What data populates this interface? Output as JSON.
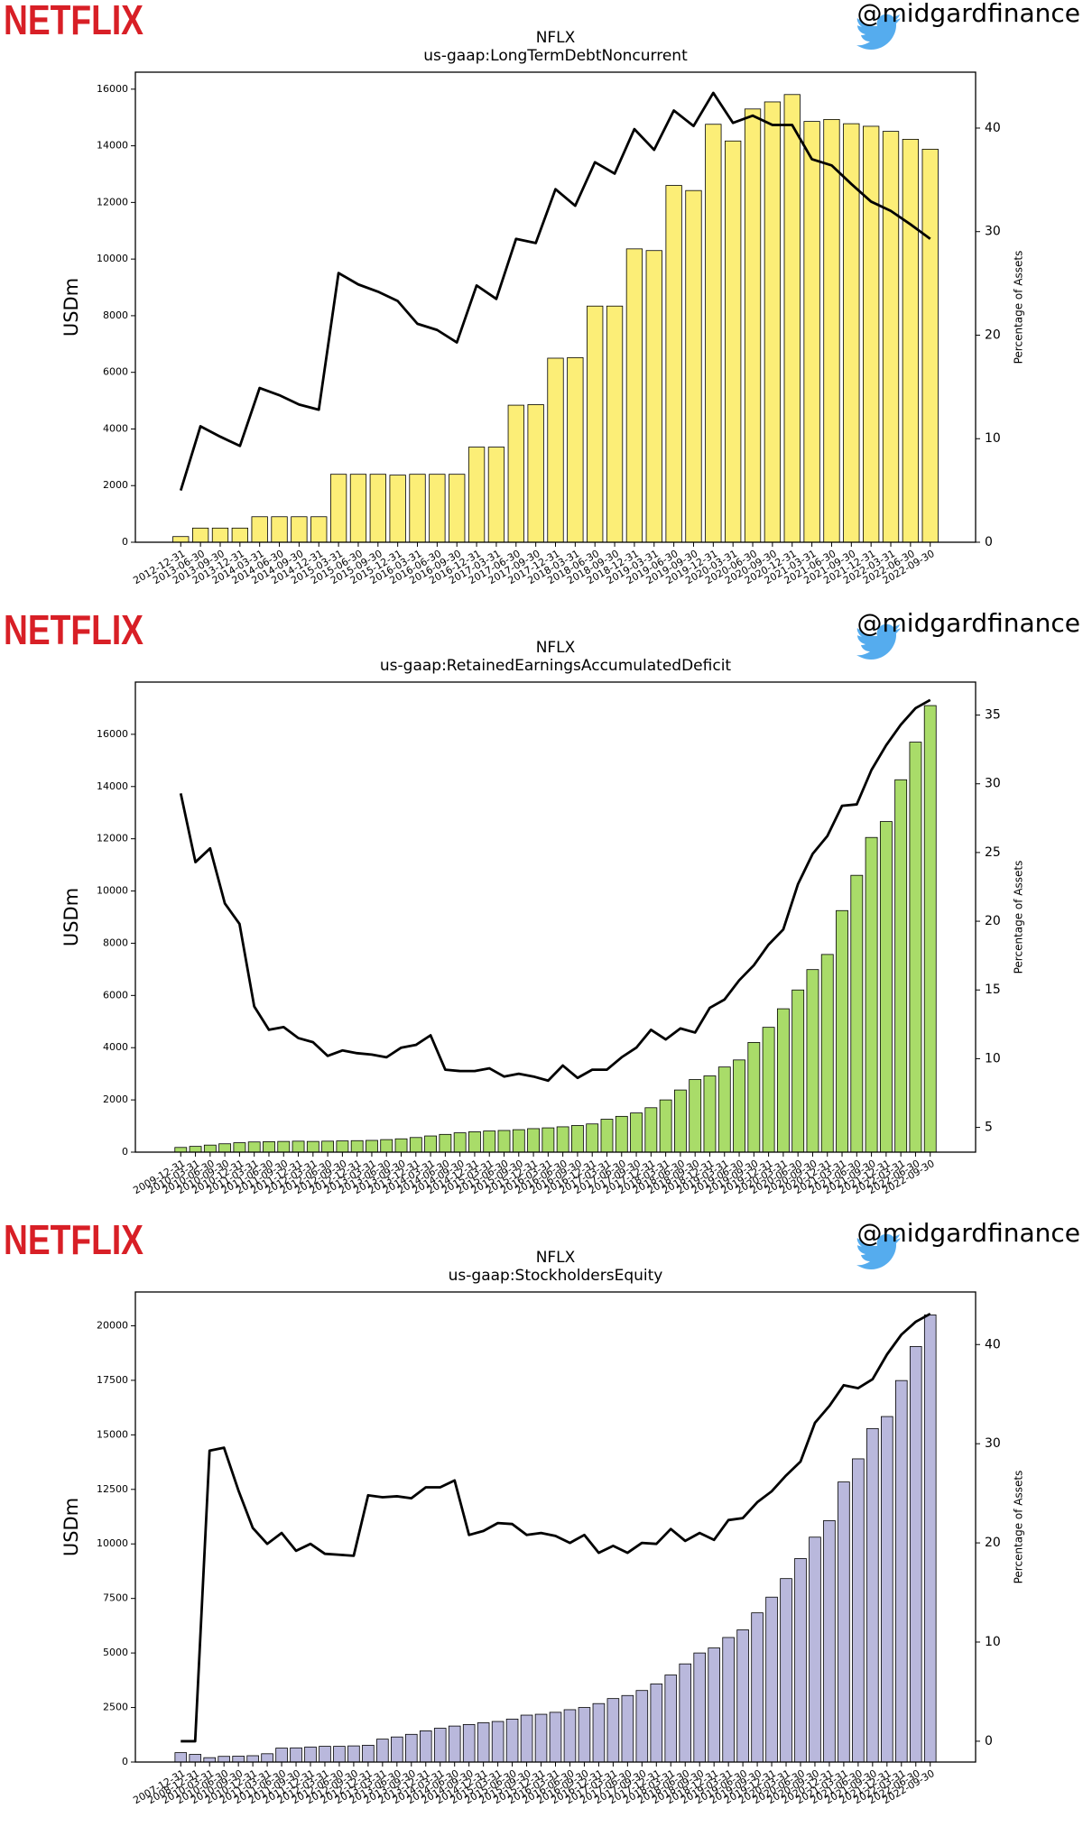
{
  "chart_data": [
    {
      "type": "bar",
      "logo": "NETFLIX",
      "handle": "@midgardfinance",
      "title": "NFLX",
      "subtitle": "us-gaap:LongTermDebtNoncurrent",
      "ylabel": "USDm",
      "y2label": "Percentage of Assets",
      "categories": [
        "2012-12-31",
        "2013-06-30",
        "2013-09-30",
        "2013-12-31",
        "2014-03-31",
        "2014-06-30",
        "2014-09-30",
        "2014-12-31",
        "2015-03-31",
        "2015-06-30",
        "2015-09-30",
        "2015-12-31",
        "2016-03-31",
        "2016-06-30",
        "2016-09-30",
        "2016-12-31",
        "2017-03-31",
        "2017-06-30",
        "2017-09-30",
        "2017-12-31",
        "2018-03-31",
        "2018-06-30",
        "2018-09-30",
        "2018-12-31",
        "2019-03-31",
        "2019-06-30",
        "2019-09-30",
        "2019-12-31",
        "2020-03-31",
        "2020-06-30",
        "2020-09-30",
        "2020-12-31",
        "2021-03-31",
        "2021-06-30",
        "2021-09-30",
        "2021-12-31",
        "2022-03-31",
        "2022-06-30",
        "2022-09-30"
      ],
      "series": [
        {
          "type": "bar",
          "color": "#fcee77",
          "values": [
            200,
            500,
            500,
            500,
            900,
            900,
            900,
            900,
            2400,
            2400,
            2400,
            2370,
            2400,
            2400,
            2400,
            3360,
            3360,
            4840,
            4860,
            6500,
            6520,
            8340,
            8340,
            10360,
            10300,
            12600,
            12420,
            14760,
            14170,
            15300,
            15550,
            15810,
            14860,
            14930,
            14780,
            14690,
            14510,
            14230,
            13880
          ]
        },
        {
          "type": "line",
          "axis": "y2",
          "color": "#000000",
          "values": [
            5.0,
            11.2,
            10.2,
            9.3,
            14.9,
            14.2,
            13.3,
            12.8,
            26.0,
            24.9,
            24.2,
            23.3,
            21.1,
            20.5,
            19.3,
            24.8,
            23.5,
            29.3,
            28.9,
            34.1,
            32.5,
            36.7,
            35.6,
            39.9,
            37.9,
            41.7,
            40.2,
            43.4,
            40.5,
            41.2,
            40.3,
            40.3,
            37.0,
            36.4,
            34.6,
            32.9,
            32.0,
            30.7,
            29.3
          ]
        }
      ],
      "ylim": [
        0,
        16600
      ],
      "yticks": [
        0,
        2000,
        4000,
        6000,
        8000,
        10000,
        12000,
        14000,
        16000
      ],
      "y2lim": [
        0,
        45.4
      ],
      "y2ticks": [
        0,
        10,
        20,
        30,
        40
      ]
    },
    {
      "type": "bar",
      "logo": "NETFLIX",
      "handle": "@midgardfinance",
      "title": "NFLX",
      "subtitle": "us-gaap:RetainedEarningsAccumulatedDeficit",
      "ylabel": "USDm",
      "y2label": "Percentage of Assets",
      "categories": [
        "2009-12-31",
        "2010-03-31",
        "2010-06-30",
        "2010-09-30",
        "2010-12-31",
        "2011-03-31",
        "2011-06-30",
        "2011-09-30",
        "2011-12-31",
        "2012-03-31",
        "2012-06-30",
        "2012-09-30",
        "2012-12-31",
        "2013-03-31",
        "2013-06-30",
        "2013-09-30",
        "2013-12-31",
        "2014-03-31",
        "2014-06-30",
        "2014-09-30",
        "2014-12-31",
        "2015-03-31",
        "2015-06-30",
        "2015-09-30",
        "2015-12-31",
        "2016-03-31",
        "2016-06-30",
        "2016-09-30",
        "2016-12-31",
        "2017-03-31",
        "2017-06-30",
        "2017-09-30",
        "2017-12-31",
        "2018-03-31",
        "2018-06-30",
        "2018-09-30",
        "2018-12-31",
        "2019-03-31",
        "2019-06-30",
        "2019-09-30",
        "2019-12-31",
        "2020-03-31",
        "2020-06-30",
        "2020-09-30",
        "2020-12-31",
        "2021-03-31",
        "2021-06-30",
        "2021-09-30",
        "2021-12-31",
        "2022-03-31",
        "2022-06-30",
        "2022-09-30"
      ],
      "series": [
        {
          "type": "bar",
          "color": "#a9dc69",
          "values": [
            180,
            220,
            270,
            320,
            360,
            390,
            400,
            410,
            420,
            410,
            420,
            430,
            440,
            450,
            480,
            510,
            560,
            620,
            680,
            740,
            780,
            810,
            830,
            860,
            900,
            930,
            970,
            1020,
            1080,
            1260,
            1370,
            1500,
            1700,
            2000,
            2380,
            2780,
            2920,
            3260,
            3530,
            4200,
            4780,
            5490,
            6210,
            6990,
            7570,
            9250,
            10600,
            12050,
            12660,
            14260,
            15700,
            17100
          ]
        },
        {
          "type": "line",
          "axis": "y2",
          "color": "#000000",
          "values": [
            29.3,
            24.3,
            25.3,
            21.3,
            19.8,
            13.8,
            12.1,
            12.3,
            11.5,
            11.2,
            10.2,
            10.6,
            10.4,
            10.3,
            10.1,
            10.8,
            11.0,
            11.7,
            9.2,
            9.1,
            9.1,
            9.3,
            8.7,
            8.9,
            8.7,
            8.4,
            9.5,
            8.6,
            9.2,
            9.2,
            10.1,
            10.8,
            12.1,
            11.4,
            12.2,
            11.9,
            13.7,
            14.3,
            15.7,
            16.8,
            18.3,
            19.4,
            22.7,
            24.9,
            26.2,
            28.4,
            28.5,
            31.0,
            32.8,
            34.3,
            35.5,
            36.1
          ]
        }
      ],
      "ylim": [
        0,
        18000
      ],
      "yticks": [
        0,
        2000,
        4000,
        6000,
        8000,
        10000,
        12000,
        14000,
        16000
      ],
      "y2lim": [
        3.2,
        37.4
      ],
      "y2ticks": [
        5,
        10,
        15,
        20,
        25,
        30,
        35
      ]
    },
    {
      "type": "bar",
      "logo": "NETFLIX",
      "handle": "@midgardfinance",
      "title": "NFLX",
      "subtitle": "us-gaap:StockholdersEquity",
      "ylabel": "USDm",
      "y2label": "Percentage of Assets",
      "categories": [
        "2007-12-31",
        "2008-12-31",
        "2010-03-31",
        "2010-06-30",
        "2010-09-30",
        "2010-12-31",
        "2011-03-31",
        "2011-06-30",
        "2011-09-30",
        "2011-12-31",
        "2012-03-31",
        "2012-06-30",
        "2012-09-30",
        "2012-12-31",
        "2013-03-31",
        "2013-06-30",
        "2013-09-30",
        "2013-12-31",
        "2014-03-31",
        "2014-06-30",
        "2014-09-30",
        "2014-12-31",
        "2015-03-31",
        "2015-06-30",
        "2015-09-30",
        "2015-12-31",
        "2016-03-31",
        "2016-06-30",
        "2016-09-30",
        "2016-12-31",
        "2017-03-31",
        "2017-06-30",
        "2017-09-30",
        "2017-12-31",
        "2018-03-31",
        "2018-06-30",
        "2018-09-30",
        "2018-12-31",
        "2019-03-31",
        "2019-06-30",
        "2019-09-30",
        "2019-12-31",
        "2020-03-31",
        "2020-06-30",
        "2020-09-30",
        "2020-12-31",
        "2021-03-31",
        "2021-06-30",
        "2021-09-30",
        "2021-12-31",
        "2022-03-31",
        "2022-06-30",
        "2022-09-30"
      ],
      "series": [
        {
          "type": "bar",
          "color": "#b9b8dc",
          "values": [
            430,
            350,
            200,
            260,
            270,
            290,
            380,
            640,
            650,
            690,
            720,
            720,
            740,
            770,
            1050,
            1150,
            1270,
            1430,
            1550,
            1650,
            1720,
            1800,
            1860,
            1970,
            2150,
            2190,
            2280,
            2400,
            2500,
            2680,
            2910,
            3050,
            3280,
            3580,
            3990,
            4500,
            5000,
            5230,
            5710,
            6060,
            6840,
            7560,
            8410,
            9330,
            10310,
            11070,
            12840,
            13900,
            15290,
            15840,
            17490,
            19050,
            20500
          ]
        },
        {
          "type": "line",
          "axis": "y2",
          "color": "#000000",
          "values": [
            0.0,
            0.0,
            29.3,
            29.6,
            25.3,
            21.5,
            19.9,
            21.0,
            19.2,
            19.9,
            18.9,
            18.8,
            18.7,
            24.8,
            24.6,
            24.7,
            24.5,
            25.6,
            25.6,
            26.3,
            20.8,
            21.2,
            22.0,
            21.9,
            20.8,
            21.0,
            20.7,
            20.0,
            20.8,
            19.0,
            19.7,
            19.0,
            20.0,
            19.9,
            21.4,
            20.2,
            21.0,
            20.3,
            22.3,
            22.5,
            24.1,
            25.2,
            26.8,
            28.2,
            32.1,
            33.8,
            35.9,
            35.6,
            36.5,
            39.0,
            41.0,
            42.3,
            43.1
          ]
        }
      ],
      "ylim": [
        0,
        21550
      ],
      "yticks": [
        0,
        2500,
        5000,
        7500,
        10000,
        12500,
        15000,
        17500,
        20000
      ],
      "y2lim": [
        -2.1,
        45.3
      ],
      "y2ticks": [
        0,
        10,
        20,
        30,
        40
      ]
    }
  ]
}
